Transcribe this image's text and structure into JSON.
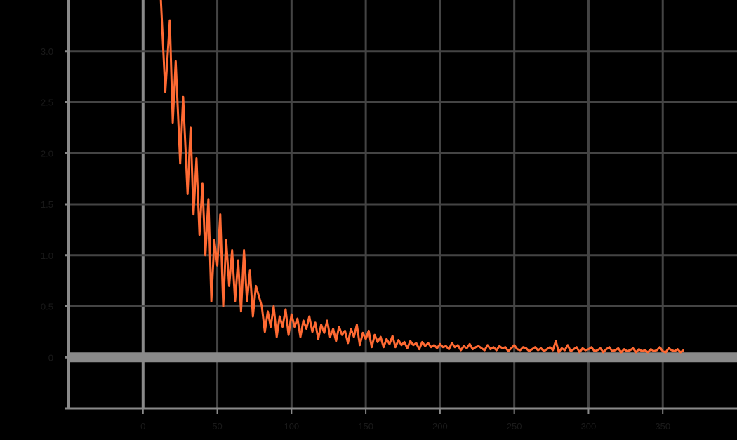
{
  "chart_data": {
    "type": "line",
    "title": "",
    "xlabel": "",
    "ylabel": "",
    "x_ticks": [
      "0",
      "50",
      "100",
      "150",
      "200",
      "250",
      "300",
      "350"
    ],
    "y_ticks": [
      "0",
      "0.5",
      "1.0",
      "1.5",
      "2.0",
      "2.5",
      "3.0"
    ],
    "xlim": [
      -50,
      400
    ],
    "ylim": [
      -0.5,
      3.5
    ],
    "grid": true,
    "series": [
      {
        "color": "#ff6a33",
        "x": [
          12,
          15,
          18,
          20,
          22,
          25,
          27,
          30,
          32,
          34,
          36,
          38,
          40,
          42,
          44,
          46,
          48,
          50,
          52,
          54,
          56,
          58,
          60,
          62,
          64,
          66,
          68,
          70,
          72,
          74,
          76,
          78,
          80,
          82,
          84,
          86,
          88,
          90,
          92,
          94,
          96,
          98,
          100,
          102,
          104,
          106,
          108,
          110,
          112,
          114,
          116,
          118,
          120,
          122,
          124,
          126,
          128,
          130,
          132,
          134,
          136,
          138,
          140,
          142,
          144,
          146,
          148,
          150,
          152,
          154,
          156,
          158,
          160,
          162,
          164,
          166,
          168,
          170,
          172,
          174,
          176,
          178,
          180,
          182,
          184,
          186,
          188,
          190,
          192,
          194,
          196,
          198,
          200,
          202,
          204,
          206,
          208,
          210,
          212,
          214,
          216,
          218,
          220,
          222,
          224,
          226,
          228,
          230,
          232,
          234,
          236,
          238,
          240,
          242,
          244,
          246,
          248,
          250,
          252,
          254,
          256,
          258,
          260,
          262,
          264,
          266,
          268,
          270,
          272,
          274,
          276,
          278,
          280,
          282,
          284,
          286,
          288,
          290,
          292,
          294,
          296,
          298,
          300,
          302,
          304,
          306,
          308,
          310,
          312,
          314,
          316,
          318,
          320,
          322,
          324,
          326,
          328,
          330,
          332,
          334,
          336,
          338,
          340,
          342,
          344,
          346,
          348,
          350,
          352,
          354,
          356,
          358,
          360,
          362,
          364
        ],
        "y": [
          3.5,
          2.6,
          3.3,
          2.3,
          2.9,
          1.9,
          2.55,
          1.6,
          2.25,
          1.4,
          1.95,
          1.2,
          1.7,
          1.0,
          1.55,
          0.55,
          1.15,
          0.9,
          1.4,
          0.5,
          1.15,
          0.7,
          1.05,
          0.55,
          0.95,
          0.45,
          1.05,
          0.55,
          0.85,
          0.4,
          0.7,
          0.6,
          0.5,
          0.25,
          0.45,
          0.3,
          0.5,
          0.2,
          0.4,
          0.3,
          0.47,
          0.22,
          0.42,
          0.3,
          0.38,
          0.2,
          0.36,
          0.28,
          0.4,
          0.25,
          0.34,
          0.18,
          0.32,
          0.24,
          0.36,
          0.2,
          0.28,
          0.16,
          0.3,
          0.22,
          0.26,
          0.14,
          0.28,
          0.2,
          0.32,
          0.12,
          0.24,
          0.18,
          0.26,
          0.1,
          0.22,
          0.15,
          0.2,
          0.1,
          0.18,
          0.13,
          0.21,
          0.1,
          0.17,
          0.12,
          0.15,
          0.09,
          0.16,
          0.12,
          0.14,
          0.08,
          0.15,
          0.11,
          0.14,
          0.1,
          0.12,
          0.09,
          0.13,
          0.1,
          0.11,
          0.08,
          0.14,
          0.1,
          0.12,
          0.07,
          0.11,
          0.09,
          0.13,
          0.08,
          0.1,
          0.11,
          0.09,
          0.07,
          0.12,
          0.08,
          0.1,
          0.07,
          0.11,
          0.09,
          0.1,
          0.06,
          0.09,
          0.12,
          0.08,
          0.07,
          0.1,
          0.09,
          0.06,
          0.08,
          0.1,
          0.07,
          0.09,
          0.06,
          0.08,
          0.1,
          0.07,
          0.16,
          0.05,
          0.09,
          0.07,
          0.12,
          0.06,
          0.08,
          0.1,
          0.05,
          0.09,
          0.07,
          0.08,
          0.1,
          0.06,
          0.07,
          0.09,
          0.05,
          0.08,
          0.1,
          0.06,
          0.07,
          0.09,
          0.05,
          0.08,
          0.06,
          0.07,
          0.09,
          0.05,
          0.08,
          0.06,
          0.07,
          0.05,
          0.08,
          0.06,
          0.07,
          0.1,
          0.06,
          0.05,
          0.09,
          0.07,
          0.06,
          0.08,
          0.05,
          0.07
        ]
      }
    ]
  }
}
